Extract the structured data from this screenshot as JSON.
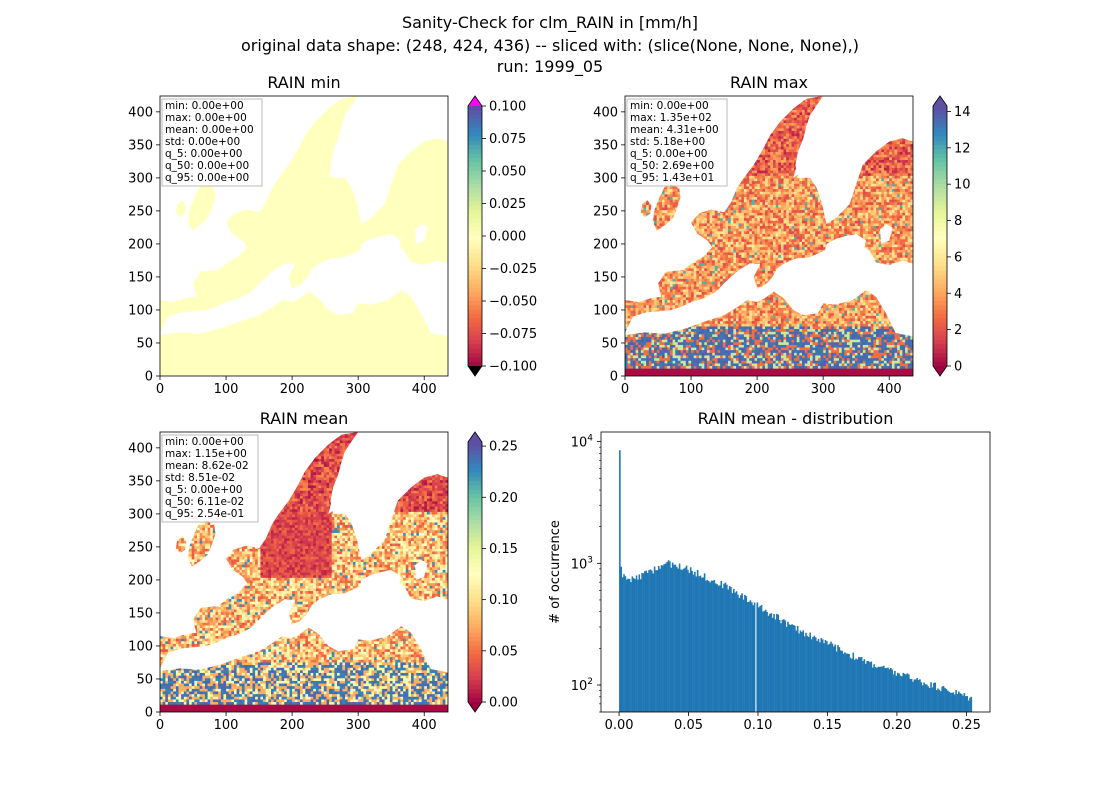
{
  "figure": {
    "title_line1": "Sanity-Check for clm_RAIN in [mm/h]",
    "title_line2": "original data shape: (248, 424, 436) -- sliced with: (slice(None, None, None),)",
    "title_line3": "run: 1999_05"
  },
  "colors": {
    "land_pale": "#ffffbe",
    "cmap": [
      "#9e0142",
      "#d53e4f",
      "#f46d43",
      "#fdae61",
      "#fee08b",
      "#ffffbf",
      "#e6f598",
      "#abdda4",
      "#66c2a5",
      "#3288bd",
      "#5e4fa2"
    ],
    "over_min_panel": "#ff00ff",
    "under": "#000000",
    "hist_bar": "#1f77b4"
  },
  "chart_data": [
    {
      "type": "heatmap",
      "title": "RAIN min",
      "xlim": [
        0,
        436
      ],
      "ylim": [
        0,
        424
      ],
      "x_ticks": [
        "0",
        "100",
        "200",
        "300",
        "400"
      ],
      "y_ticks": [
        "0",
        "50",
        "100",
        "150",
        "200",
        "250",
        "300",
        "350",
        "400"
      ],
      "colorbar": {
        "min": -0.1,
        "max": 0.1,
        "extend": "both",
        "ticks": [
          "0.100",
          "0.075",
          "0.050",
          "0.025",
          "0.000",
          "−0.025",
          "−0.050",
          "−0.075",
          "−0.100"
        ]
      },
      "stats": [
        "min: 0.00e+00",
        "max: 0.00e+00",
        "mean: 0.00e+00",
        "std: 0.00e+00",
        "q_5: 0.00e+00",
        "q_50: 0.00e+00",
        "q_95: 0.00e+00"
      ]
    },
    {
      "type": "heatmap",
      "title": "RAIN max",
      "xlim": [
        0,
        436
      ],
      "ylim": [
        0,
        424
      ],
      "x_ticks": [
        "0",
        "100",
        "200",
        "300",
        "400"
      ],
      "y_ticks": [
        "0",
        "50",
        "100",
        "150",
        "200",
        "250",
        "300",
        "350",
        "400"
      ],
      "colorbar": {
        "min": 0,
        "max": 14.3,
        "extend": "both",
        "ticks": [
          "14",
          "12",
          "10",
          "8",
          "6",
          "4",
          "2",
          "0"
        ]
      },
      "stats": [
        "min: 0.00e+00",
        "max: 1.35e+02",
        "mean: 4.31e+00",
        "std: 5.18e+00",
        "q_5: 0.00e+00",
        "q_50: 2.69e+00",
        "q_95: 1.43e+01"
      ]
    },
    {
      "type": "heatmap",
      "title": "RAIN mean",
      "xlim": [
        0,
        436
      ],
      "ylim": [
        0,
        424
      ],
      "x_ticks": [
        "0",
        "100",
        "200",
        "300",
        "400"
      ],
      "y_ticks": [
        "0",
        "50",
        "100",
        "150",
        "200",
        "250",
        "300",
        "350",
        "400"
      ],
      "colorbar": {
        "min": 0,
        "max": 0.254,
        "extend": "both",
        "ticks": [
          "0.25",
          "0.20",
          "0.15",
          "0.10",
          "0.05",
          "0.00"
        ]
      },
      "stats": [
        "min: 0.00e+00",
        "max: 1.15e+00",
        "mean: 8.62e-02",
        "std: 8.51e-02",
        "q_5: 0.00e+00",
        "q_50: 6.11e-02",
        "q_95: 2.54e-01"
      ]
    },
    {
      "type": "bar",
      "title": "RAIN mean - distribution",
      "ylabel": "# of occurrence",
      "yscale": "log",
      "xlim": [
        -0.013,
        0.267
      ],
      "ylim": [
        60,
        12000
      ],
      "x_ticks": [
        "0.00",
        "0.05",
        "0.10",
        "0.15",
        "0.20",
        "0.25"
      ],
      "x_tick_values": [
        0,
        0.05,
        0.1,
        0.15,
        0.2,
        0.25
      ],
      "y_ticks": [
        {
          "base": "10",
          "exp": "2",
          "value": 100
        },
        {
          "base": "10",
          "exp": "3",
          "value": 1000
        },
        {
          "base": "10",
          "exp": "4",
          "value": 10000
        }
      ],
      "bin_width": 0.001,
      "bins_start": 0,
      "peak_anchors": [
        [
          0.0,
          8500
        ],
        [
          0.001,
          970
        ],
        [
          0.002,
          850
        ],
        [
          0.003,
          780
        ],
        [
          0.006,
          720
        ],
        [
          0.012,
          740
        ],
        [
          0.02,
          830
        ],
        [
          0.03,
          960
        ],
        [
          0.036,
          1000
        ],
        [
          0.045,
          930
        ],
        [
          0.06,
          800
        ],
        [
          0.08,
          620
        ],
        [
          0.1,
          450
        ],
        [
          0.125,
          300
        ],
        [
          0.15,
          220
        ],
        [
          0.175,
          160
        ],
        [
          0.2,
          125
        ],
        [
          0.225,
          100
        ],
        [
          0.245,
          85
        ],
        [
          0.253,
          78
        ]
      ]
    }
  ]
}
